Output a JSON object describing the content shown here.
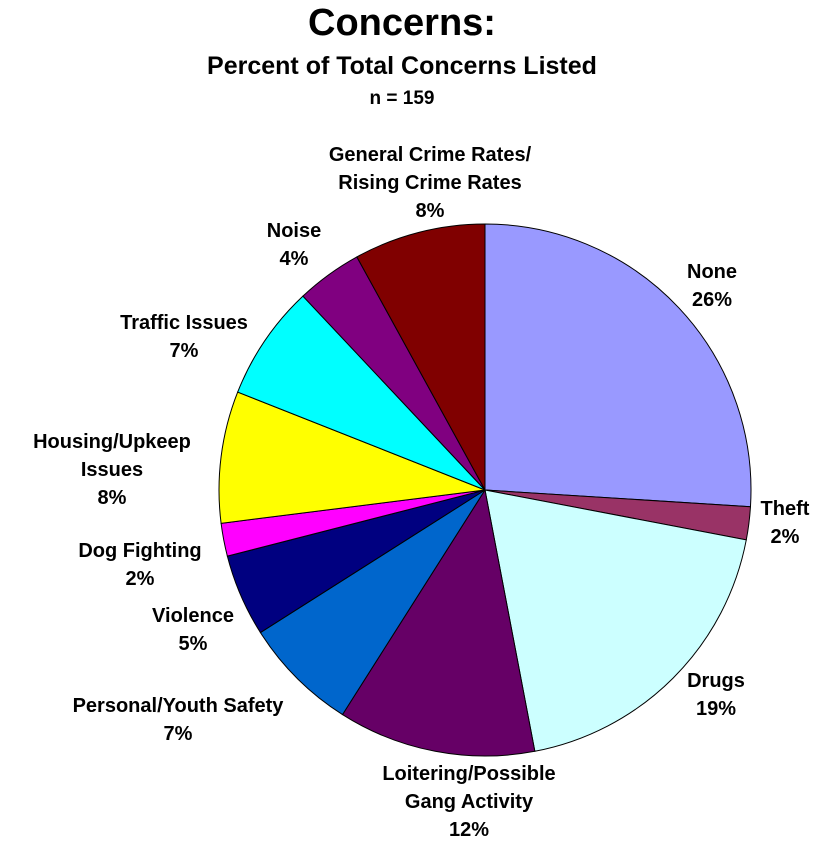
{
  "chart_data": {
    "type": "pie",
    "title": "Concerns:",
    "subtitle": "Percent of Total Concerns Listed",
    "note": "n = 159",
    "start_angle_deg": 0,
    "direction": "clockwise",
    "slices": [
      {
        "lines": [
          "None"
        ],
        "pct_label": "26%",
        "value": 26,
        "color": "#9999ff"
      },
      {
        "lines": [
          "Theft"
        ],
        "pct_label": "2%",
        "value": 2,
        "color": "#993366"
      },
      {
        "lines": [
          "Drugs"
        ],
        "pct_label": "19%",
        "value": 19,
        "color": "#ccffff"
      },
      {
        "lines": [
          "Loitering/Possible",
          "Gang Activity"
        ],
        "pct_label": "12%",
        "value": 12,
        "color": "#660066"
      },
      {
        "lines": [
          "Personal/Youth Safety"
        ],
        "pct_label": "7%",
        "value": 7,
        "color": "#0066cc"
      },
      {
        "lines": [
          "Violence"
        ],
        "pct_label": "5%",
        "value": 5,
        "color": "#000080"
      },
      {
        "lines": [
          "Dog Fighting"
        ],
        "pct_label": "2%",
        "value": 2,
        "color": "#ff00ff"
      },
      {
        "lines": [
          "Housing/Upkeep",
          "Issues"
        ],
        "pct_label": "8%",
        "value": 8,
        "color": "#ffff00"
      },
      {
        "lines": [
          "Traffic Issues"
        ],
        "pct_label": "7%",
        "value": 7,
        "color": "#00ffff"
      },
      {
        "lines": [
          "Noise"
        ],
        "pct_label": "4%",
        "value": 4,
        "color": "#800080"
      },
      {
        "lines": [
          "General Crime Rates/",
          "Rising Crime Rates"
        ],
        "pct_label": "8%",
        "value": 8,
        "color": "#800000"
      }
    ]
  }
}
